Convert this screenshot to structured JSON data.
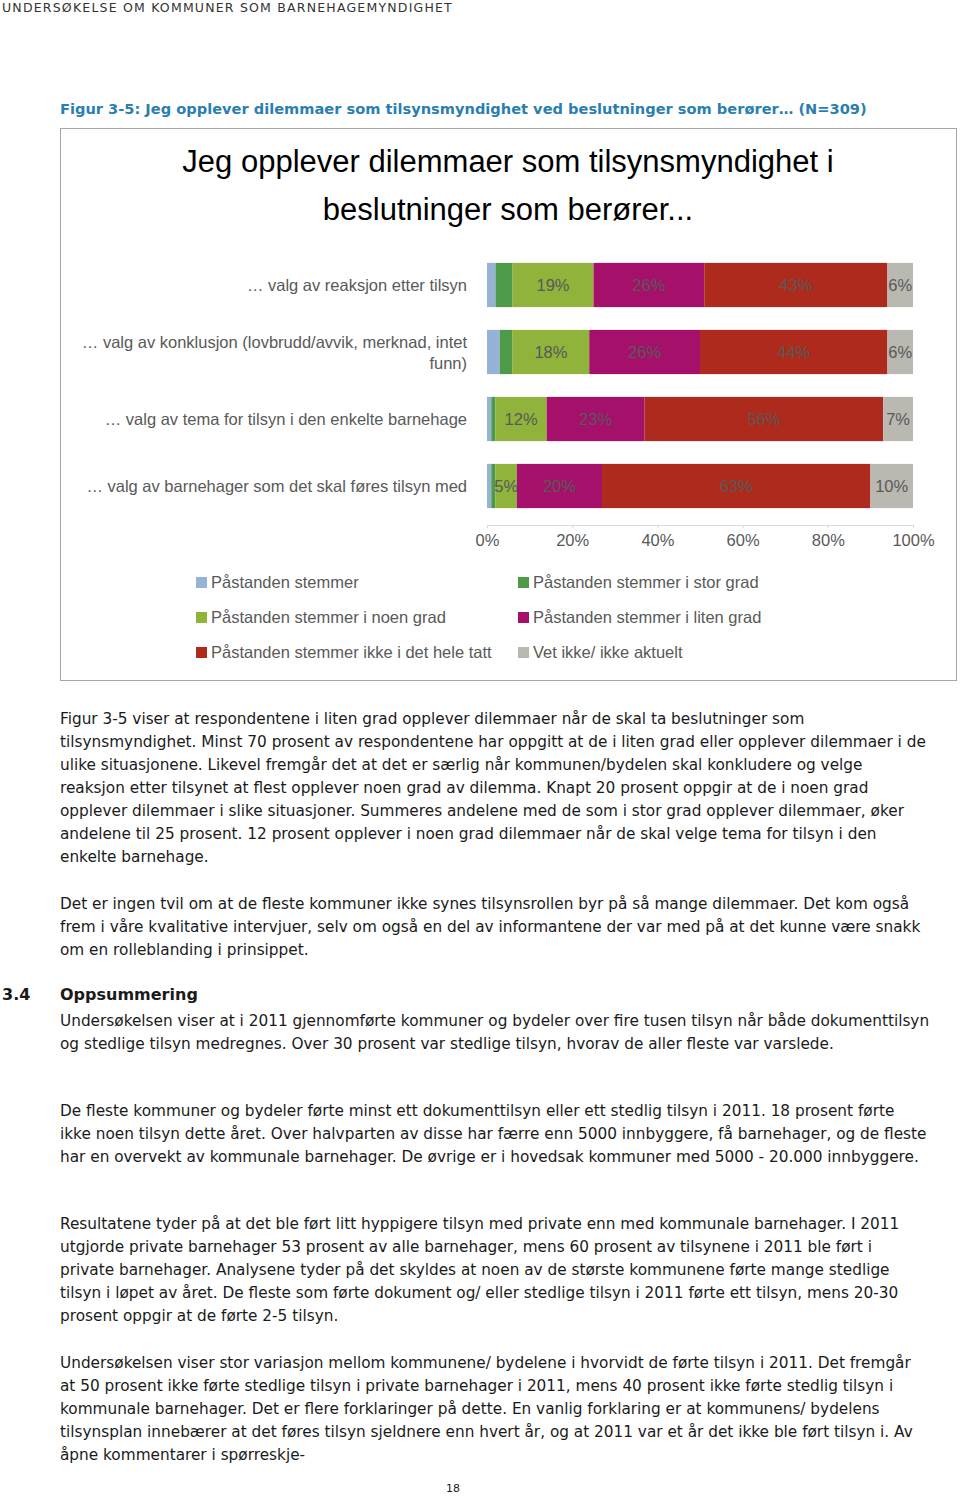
{
  "header": "UNDERSØKELSE OM KOMMUNER SOM BARNEHAGEMYNDIGHET",
  "figure_caption": "Figur 3-5: Jeg opplever dilemmaer som tilsynsmyndighet ved beslutninger som berører… (N=309)",
  "chart_data": {
    "type": "bar",
    "orientation": "horizontal",
    "stacked": true,
    "data_labels": true,
    "legend": "bottom",
    "title": "Jeg opplever dilemmaer som tilsynsmyndighet i beslutninger som berører...",
    "categories": [
      "… valg av reaksjon etter tilsyn",
      "… valg av konklusjon (lovbrudd/avvik, merknad, intet funn)",
      "… valg av tema for tilsyn i den enkelte barnehage",
      "… valg av barnehager som det skal føres tilsyn med"
    ],
    "xlim": [
      0,
      100
    ],
    "xticks": [
      {
        "value": 0,
        "label": "0%"
      },
      {
        "value": 20,
        "label": "20%"
      },
      {
        "value": 40,
        "label": "40%"
      },
      {
        "value": 60,
        "label": "60%"
      },
      {
        "value": 80,
        "label": "80%"
      },
      {
        "value": 100,
        "label": "100%"
      }
    ],
    "series": [
      {
        "name": "Påstanden stemmer",
        "color": "#95b3d7",
        "values": [
          2,
          3,
          1,
          1
        ],
        "value_labels": [
          null,
          null,
          null,
          null
        ]
      },
      {
        "name": "Påstanden stemmer i stor grad",
        "color": "#4f9a48",
        "values": [
          4,
          3,
          1,
          1
        ],
        "value_labels": [
          null,
          null,
          null,
          null
        ]
      },
      {
        "name": "Påstanden stemmer i noen grad",
        "color": "#8fb33b",
        "values": [
          19,
          18,
          12,
          5
        ],
        "value_labels": [
          "19%",
          "18%",
          "12%",
          "5%"
        ]
      },
      {
        "name": "Påstanden stemmer i liten grad",
        "color": "#a5106b",
        "values": [
          26,
          26,
          23,
          20
        ],
        "value_labels": [
          "26%",
          "26%",
          "23%",
          "20%"
        ]
      },
      {
        "name": "Påstanden stemmer ikke i det hele tatt",
        "color": "#ad2a1c",
        "values": [
          43,
          44,
          56,
          63
        ],
        "value_labels": [
          "43%",
          "44%",
          "56%",
          "63%"
        ]
      },
      {
        "name": "Vet ikke/ ikke aktuelt",
        "color": "#b9b8b1",
        "values": [
          6,
          6,
          7,
          10
        ],
        "value_labels": [
          "6%",
          "6%",
          "7%",
          "10%"
        ]
      }
    ]
  },
  "paragraphs": [
    "Figur 3-5 viser at respondentene i liten grad opplever dilemmaer når de skal ta beslutninger som tilsynsmyndighet. Minst 70 prosent av respondentene har oppgitt at de i liten grad eller opplever dilemmaer i de ulike situasjonene. Likevel fremgår det at det er særlig når kommunen/bydelen skal konkludere og velge reaksjon etter tilsynet at flest opplever noen grad av dilemma. Knapt 20 prosent oppgir at de i noen grad opplever dilemmaer i slike situasjoner. Summeres andelene med de som i stor grad opplever dilemmaer, øker andelene til 25 prosent. 12 prosent opplever i noen grad dilemmaer når de skal velge tema for tilsyn i den enkelte barnehage.",
    "Det er ingen tvil om at de fleste kommuner ikke synes tilsynsrollen byr på så mange dilemmaer. Det kom også frem i våre kvalitative intervjuer, selv om også en del av informantene der var med på at det kunne være snakk om en rolleblanding i prinsippet."
  ],
  "section": {
    "number": "3.4",
    "title": "Oppsummering",
    "paragraphs": [
      "Undersøkelsen viser at i 2011 gjennomførte kommuner og bydeler over fire tusen tilsyn når både dokumenttilsyn og stedlige tilsyn medregnes. Over 30 prosent var stedlige tilsyn, hvorav de aller fleste var varslede.",
      "De fleste kommuner og bydeler førte minst ett dokumenttilsyn eller ett stedlig tilsyn i 2011. 18 prosent førte ikke noen tilsyn dette året. Over halvparten av disse har færre enn 5000 innbyggere, få barnehager, og de fleste har en overvekt av kommunale barnehager. De øvrige er i hovedsak kommuner med 5000 - 20.000 innbyggere.",
      "Resultatene tyder på at det ble ført litt hyppigere tilsyn med private enn med kommunale barnehager. I 2011 utgjorde private barnehager 53 prosent av alle barnehager, mens 60 prosent av tilsynene i 2011 ble ført i private barnehager. Analysene tyder på det skyldes at noen av de største kommunene førte mange stedlige tilsyn i løpet av året. De fleste som førte dokument og/ eller stedlige tilsyn i 2011 førte ett tilsyn, mens 20-30 prosent oppgir at de førte 2-5 tilsyn.",
      "Undersøkelsen viser stor variasjon mellom kommunene/ bydelene i hvorvidt de førte tilsyn i 2011. Det fremgår at 50 prosent ikke førte stedlige tilsyn i private barnehager i 2011, mens 40 prosent ikke førte stedlig tilsyn i kommunale barnehager. Det er flere forklaringer på dette. En vanlig forklaring er at kommunens/ bydelens tilsynsplan innebærer at det føres tilsyn sjeldnere enn hvert år, og at 2011 var et år det ikke ble ført tilsyn i. Av åpne kommentarer i spørreskje-"
    ]
  },
  "page_number": "18"
}
